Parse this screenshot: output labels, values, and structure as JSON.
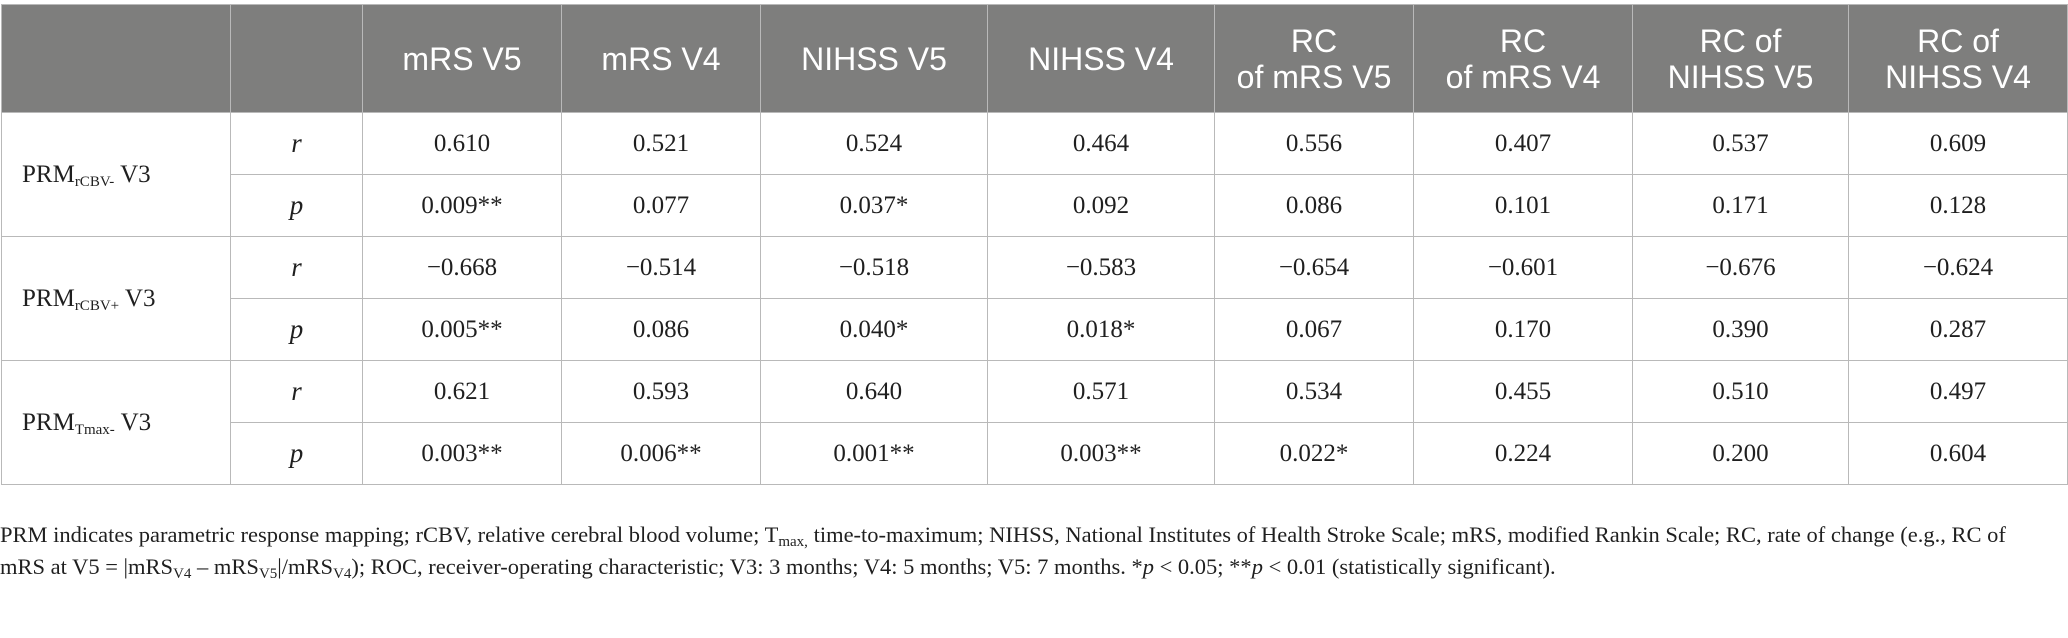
{
  "table": {
    "headers": [
      "",
      "",
      "mRS V5",
      "mRS V4",
      "NIHSS V5",
      "NIHSS V4",
      "RC of mRS V5",
      "RC of mRS V4",
      "RC of NIHSS V5",
      "RC of NIHSS V4"
    ],
    "header_lines": {
      "rc_mrs_v5": [
        "RC",
        "of mRS V5"
      ],
      "rc_mrs_v4": [
        "RC",
        "of mRS V4"
      ],
      "rc_nihss_v5": [
        "RC of",
        "NIHSS V5"
      ],
      "rc_nihss_v4": [
        "RC of",
        "NIHSS V4"
      ]
    },
    "groups": [
      {
        "prefix": "PRM",
        "sub": "rCBV-",
        "suffix": " V3",
        "rows": [
          {
            "stat": "r",
            "values": [
              "0.610",
              "0.521",
              "0.524",
              "0.464",
              "0.556",
              "0.407",
              "0.537",
              "0.609"
            ]
          },
          {
            "stat": "p",
            "values": [
              "0.009**",
              "0.077",
              "0.037*",
              "0.092",
              "0.086",
              "0.101",
              "0.171",
              "0.128"
            ]
          }
        ]
      },
      {
        "prefix": "PRM",
        "sub": "rCBV+",
        "suffix": " V3",
        "rows": [
          {
            "stat": "r",
            "values": [
              "−0.668",
              "−0.514",
              "−0.518",
              "−0.583",
              "−0.654",
              "−0.601",
              "−0.676",
              "−0.624"
            ]
          },
          {
            "stat": "p",
            "values": [
              "0.005**",
              "0.086",
              "0.040*",
              "0.018*",
              "0.067",
              "0.170",
              "0.390",
              "0.287"
            ]
          }
        ]
      },
      {
        "prefix": "PRM",
        "sub": "Tmax-",
        "suffix": " V3",
        "rows": [
          {
            "stat": "r",
            "values": [
              "0.621",
              "0.593",
              "0.640",
              "0.571",
              "0.534",
              "0.455",
              "0.510",
              "0.497"
            ]
          },
          {
            "stat": "p",
            "values": [
              "0.003**",
              "0.006**",
              "0.001**",
              "0.003**",
              "0.022*",
              "0.224",
              "0.200",
              "0.604"
            ]
          }
        ]
      }
    ]
  },
  "footnote": {
    "part1": "PRM indicates parametric response mapping; rCBV, relative cerebral blood volume; T",
    "tmax_sub": "max,",
    "part2": " time-to-maximum; NIHSS, National Institutes of Health Stroke Scale; mRS, modified Rankin Scale; RC, rate of change (e.g., RC of mRS at V5 = |mRS",
    "v4_sub": "V4",
    "part3": " – mRS",
    "v5_sub": "V5",
    "part4": "|/mRS",
    "v4_sub2": "V4",
    "part5": "); ROC, receiver-operating characteristic; V3: 3 months; V4: 5 months; V5: 7 months. *",
    "p1": "p",
    "part6": " < 0.05; **",
    "p2": "p",
    "part7": " < 0.01 (statistically significant)."
  },
  "colors": {
    "header_bg": "#7e7e7d",
    "header_text": "#ffffff",
    "grid": "#b9b9b9",
    "body_text": "#1f1f1f"
  }
}
